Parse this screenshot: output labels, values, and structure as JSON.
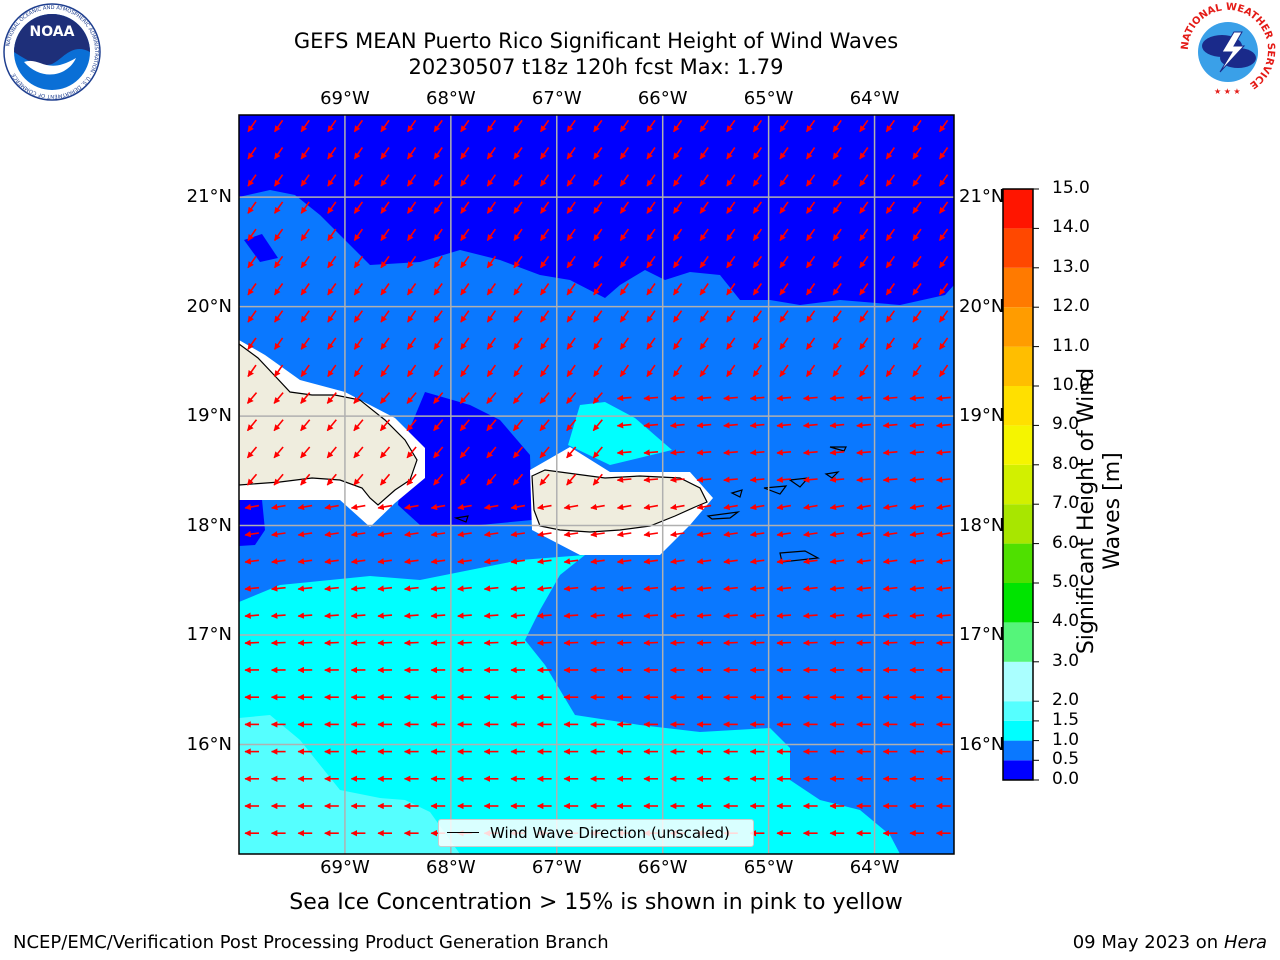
{
  "header": {
    "title_line1": "GEFS MEAN Puerto Rico Significant Height of Wind Waves",
    "title_line2": "20230507 t18z 120h fcst   Max: 1.79"
  },
  "logos": {
    "left": "NOAA",
    "left_ring": "NATIONAL OCEANIC AND ATMOSPHERIC ADMINISTRATION · U.S. DEPARTMENT OF COMMERCE",
    "right_ring": "NATIONAL WEATHER SERVICE"
  },
  "map": {
    "lon_ticks": [
      "69°W",
      "68°W",
      "67°W",
      "66°W",
      "65°W",
      "64°W"
    ],
    "lat_ticks": [
      "21°N",
      "20°N",
      "19°N",
      "18°N",
      "17°N",
      "16°N"
    ],
    "lon_range": [
      -70.0,
      -63.25
    ],
    "lat_range": [
      15.0,
      21.75
    ],
    "grid": true,
    "legend": {
      "label": "Wind Wave Direction (unscaled)",
      "placement": "lower-center"
    },
    "vector_color": "#ff0000",
    "land_color": "#efedde"
  },
  "colorbar": {
    "title": "Significant Height of Wind Waves [m]",
    "levels": [
      "0.0",
      "0.5",
      "1.0",
      "1.5",
      "2.0",
      "3.0",
      "4.0",
      "5.0",
      "6.0",
      "7.0",
      "8.0",
      "9.0",
      "10.0",
      "11.0",
      "12.0",
      "13.0",
      "14.0",
      "15.0"
    ],
    "colors": [
      "#0000ff",
      "#0a78ff",
      "#00ffff",
      "#55ffff",
      "#aaffff",
      "#55f57a",
      "#00e400",
      "#4fe000",
      "#a8e600",
      "#d2f000",
      "#f5f500",
      "#ffe000",
      "#ffbe00",
      "#ff9c00",
      "#ff7a00",
      "#ff4800",
      "#ff1500"
    ]
  },
  "notes": {
    "sea_ice": "Sea Ice Concentration > 15% is shown in pink to yellow",
    "credit": "NCEP/EMC/Verification Post Processing Product Generation Branch",
    "date": "09 May 2023 on",
    "machine": "Hera"
  }
}
